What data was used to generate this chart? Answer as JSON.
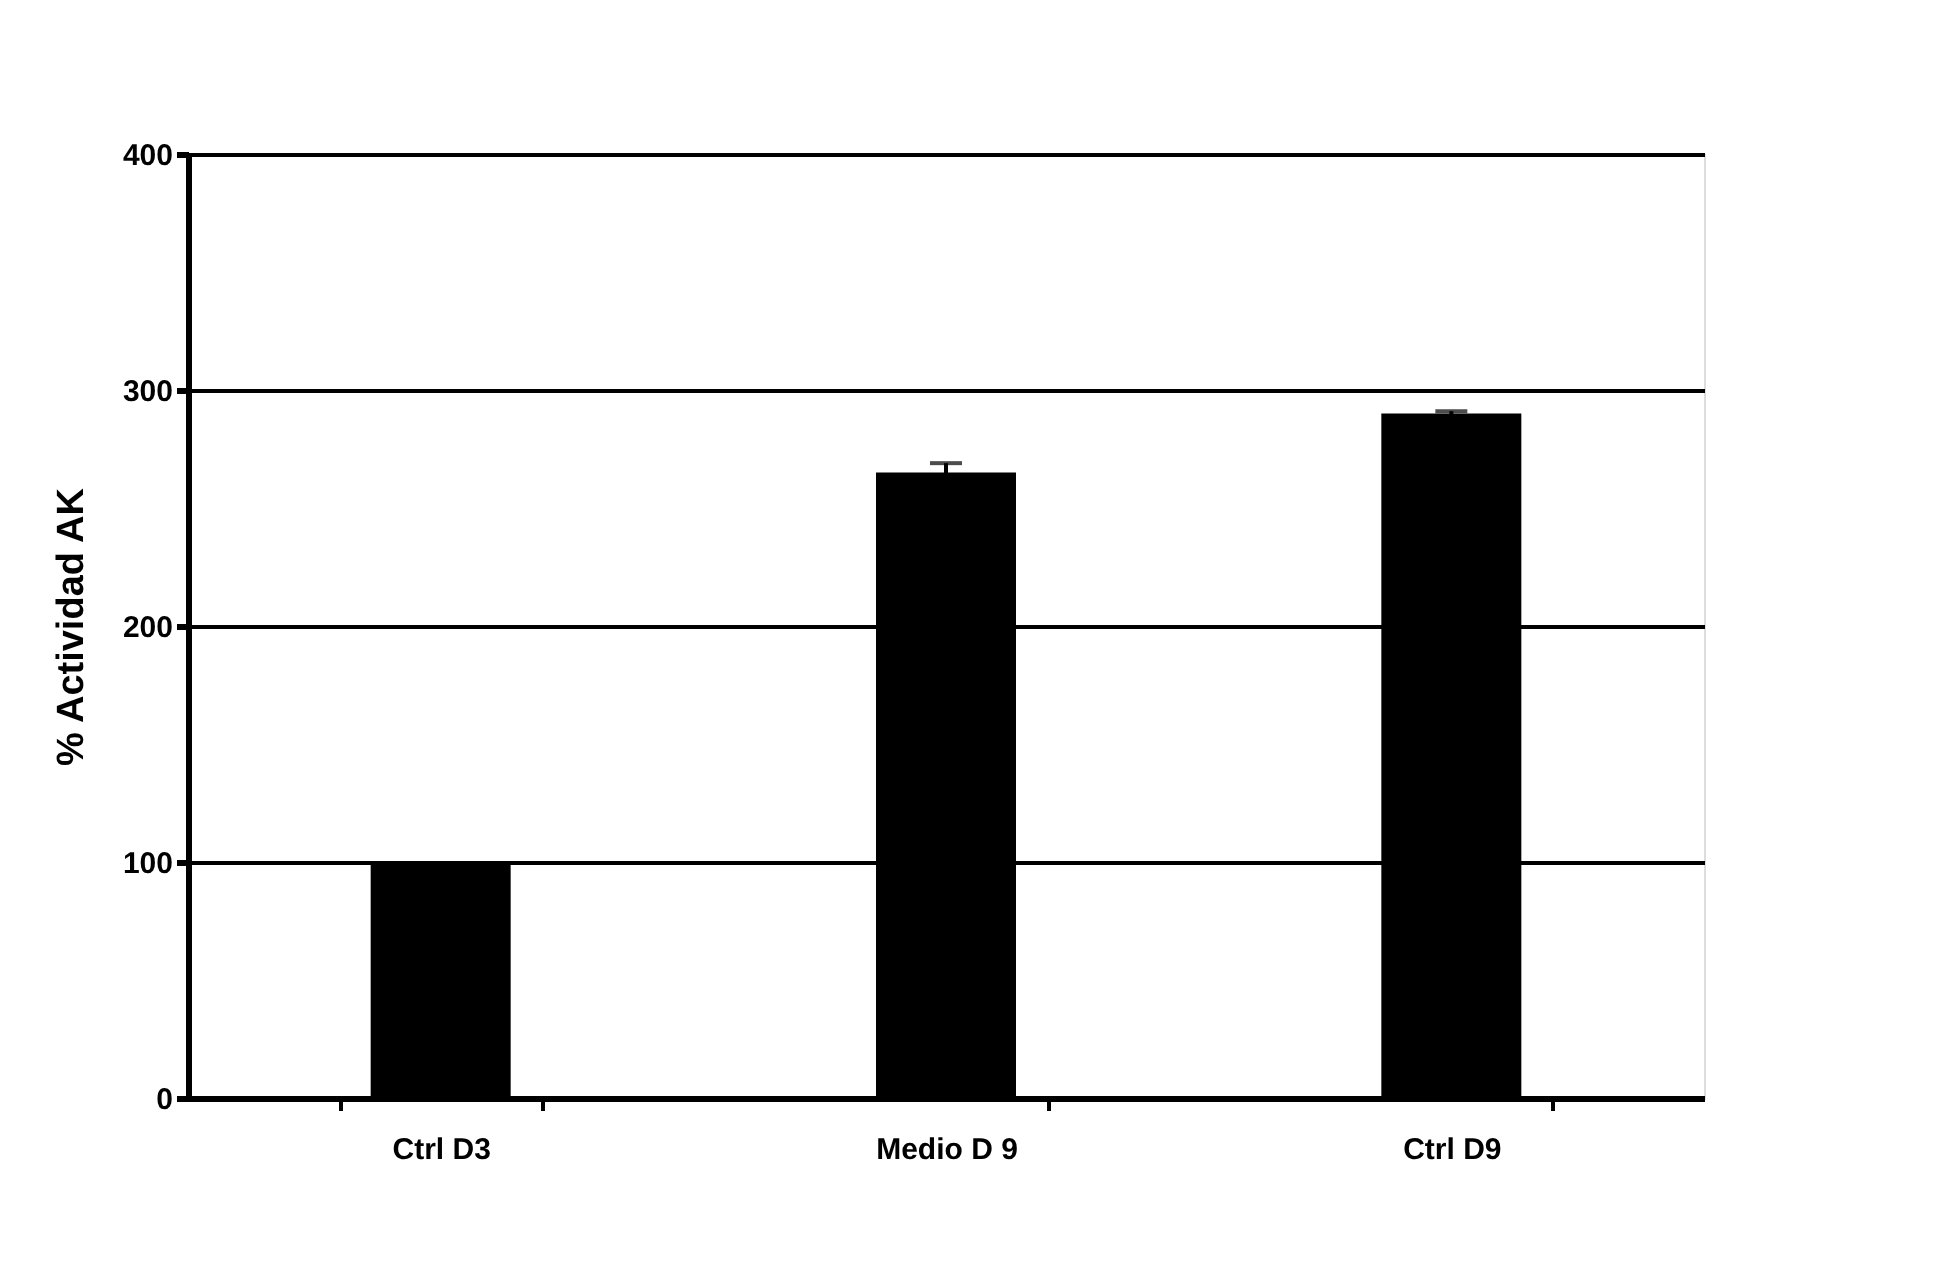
{
  "chart_data": {
    "type": "bar",
    "ylabel": "% Actividad AK",
    "categories": [
      "Ctrl D3",
      "Medio D 9",
      "Ctrl D9"
    ],
    "values": [
      100,
      265,
      290
    ],
    "errors": [
      null,
      4,
      1
    ],
    "color": "#000000",
    "ylim": [
      0,
      400
    ],
    "yticks": [
      0,
      100,
      200,
      300,
      400
    ],
    "grid": "y"
  }
}
